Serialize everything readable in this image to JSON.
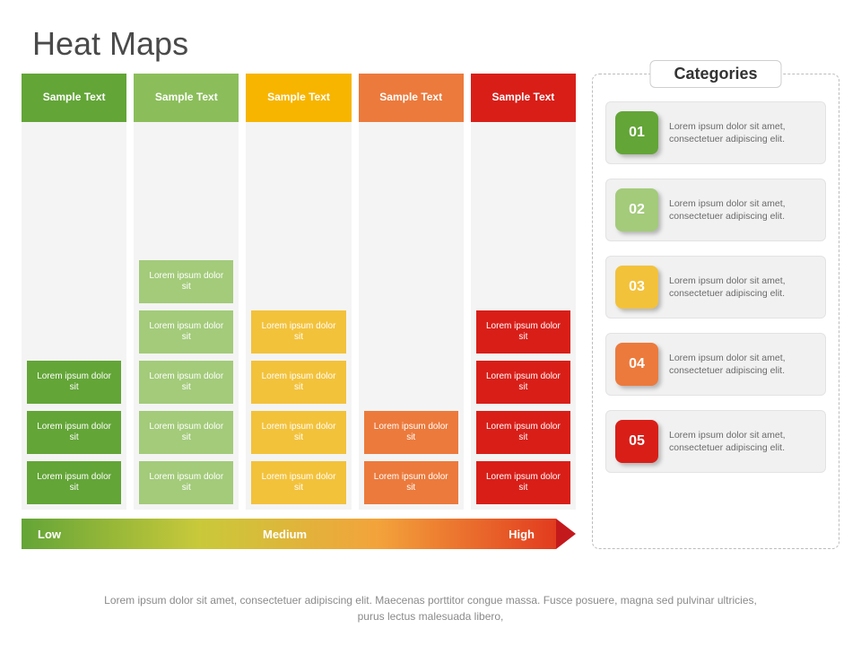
{
  "title": "Heat Maps",
  "heatmap": {
    "structure_type": "heatmap",
    "cell_text": "Lorem ipsum dolor sit",
    "cell_fontsize": 10,
    "header_fontsize": 12,
    "column_bg": "#f4f4f4",
    "columns": [
      {
        "label": "Sample Text",
        "header_bg": "#63a537",
        "cell_bg": "#63a537",
        "count": 3
      },
      {
        "label": "Sample Text",
        "header_bg": "#8bbe5a",
        "cell_bg": "#a3cb7a",
        "count": 5
      },
      {
        "label": "Sample Text",
        "header_bg": "#f7b500",
        "cell_bg": "#f3c23b",
        "count": 4
      },
      {
        "label": "Sample Text",
        "header_bg": "#ec7a3c",
        "cell_bg": "#ec7a3c",
        "count": 2
      },
      {
        "label": "Sample Text",
        "header_bg": "#d91e18",
        "cell_bg": "#d91e18",
        "count": 4
      }
    ],
    "max_rows": 5
  },
  "scale": {
    "labels": {
      "low": "Low",
      "mid": "Medium",
      "high": "High"
    },
    "gradient_stops": [
      "#63a537",
      "#c9c93a",
      "#f3a33b",
      "#e23b1f"
    ],
    "arrow_color": "#c4191c",
    "height": 34,
    "label_fontsize": 13
  },
  "categories": {
    "title": "Categories",
    "item_text": "Lorem ipsum dolor sit amet, consectetuer adipiscing elit.",
    "items": [
      {
        "num": "01",
        "badge_bg": "#63a537"
      },
      {
        "num": "02",
        "badge_bg": "#a3cb7a"
      },
      {
        "num": "03",
        "badge_bg": "#f3c23b"
      },
      {
        "num": "04",
        "badge_bg": "#ec7a3c"
      },
      {
        "num": "05",
        "badge_bg": "#d91e18"
      }
    ],
    "panel_border": "#bcbcbc",
    "item_bg": "#f1f1f1",
    "text_color": "#6b6b6b"
  },
  "footer": "Lorem ipsum dolor sit amet, consectetuer adipiscing elit. Maecenas porttitor congue massa. Fusce posuere, magna sed pulvinar ultricies, purus lectus malesuada libero,",
  "colors": {
    "title_color": "#4a4a4a",
    "background": "#ffffff"
  }
}
